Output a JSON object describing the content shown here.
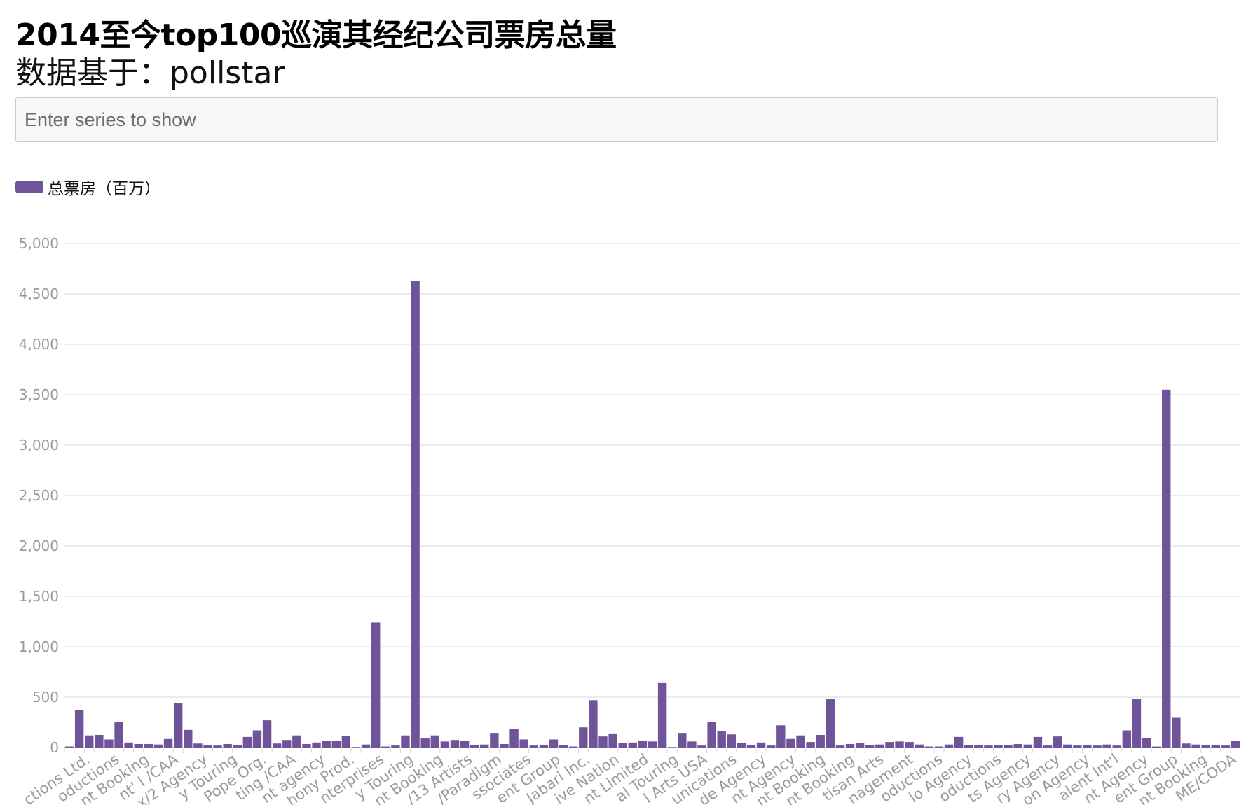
{
  "header": {
    "title": "2014至今top100巡演其经纪公司票房总量",
    "subtitle": "数据基于：pollstar"
  },
  "search": {
    "placeholder": "Enter series to show"
  },
  "legend": {
    "label": "总票房（百万）"
  },
  "colors": {
    "bar": "#6f5499",
    "grid": "#e6e6e6",
    "tick_text": "#9a9a9a"
  },
  "chart_data": {
    "type": "bar",
    "ylim": [
      0,
      5000
    ],
    "y_ticks": [
      0,
      500,
      1000,
      1500,
      2000,
      2500,
      3000,
      3500,
      4000,
      4500,
      5000
    ],
    "grid": true,
    "legend_position": "top-left",
    "series": [
      {
        "name": "总票房（百万）",
        "values": [
          10,
          370,
          120,
          125,
          80,
          250,
          50,
          35,
          35,
          30,
          85,
          440,
          175,
          40,
          25,
          20,
          35,
          25,
          105,
          170,
          270,
          40,
          75,
          120,
          35,
          50,
          65,
          65,
          115,
          5,
          30,
          1240,
          10,
          20,
          120,
          4630,
          90,
          120,
          60,
          75,
          65,
          25,
          30,
          145,
          35,
          185,
          80,
          20,
          25,
          80,
          25,
          10,
          200,
          470,
          110,
          140,
          45,
          50,
          65,
          60,
          640,
          5,
          145,
          60,
          20,
          250,
          165,
          130,
          45,
          25,
          50,
          20,
          220,
          85,
          120,
          55,
          125,
          480,
          20,
          35,
          45,
          25,
          30,
          55,
          60,
          55,
          30,
          10,
          10,
          30,
          105,
          25,
          25,
          20,
          25,
          25,
          35,
          30,
          105,
          20,
          110,
          30,
          20,
          25,
          20,
          30,
          20,
          170,
          480,
          95,
          10,
          3550,
          295,
          40,
          30,
          25,
          25,
          20,
          65
        ]
      }
    ],
    "x_tick_labels": [
      "ctions Ltd.",
      "oductions",
      "nt Booking",
      "nt' l /CAA",
      "x/2 Agency",
      "y Touring",
      "Pope Org.",
      "ting /CAA",
      "nt agency",
      "hony Prod.",
      "nterprises",
      "y Touring",
      "nt Booking",
      "/13 Artists",
      "/Paradigm",
      "ssociates",
      "ent Group",
      "Jabari Inc.",
      "ive Nation",
      "nt Limited",
      "al Touring",
      "l Arts USA",
      "unications",
      "de Agency",
      "nt Agency",
      "nt Booking",
      "nt Booking",
      "tisan Arts",
      "nagement",
      "oductions",
      "lo Agency",
      "oductions",
      "ts Agency",
      "ry Agency",
      "on Agency",
      "alent Int'l",
      "nt Agency",
      "ent Group",
      "nt Booking",
      "ME/CODA"
    ]
  }
}
